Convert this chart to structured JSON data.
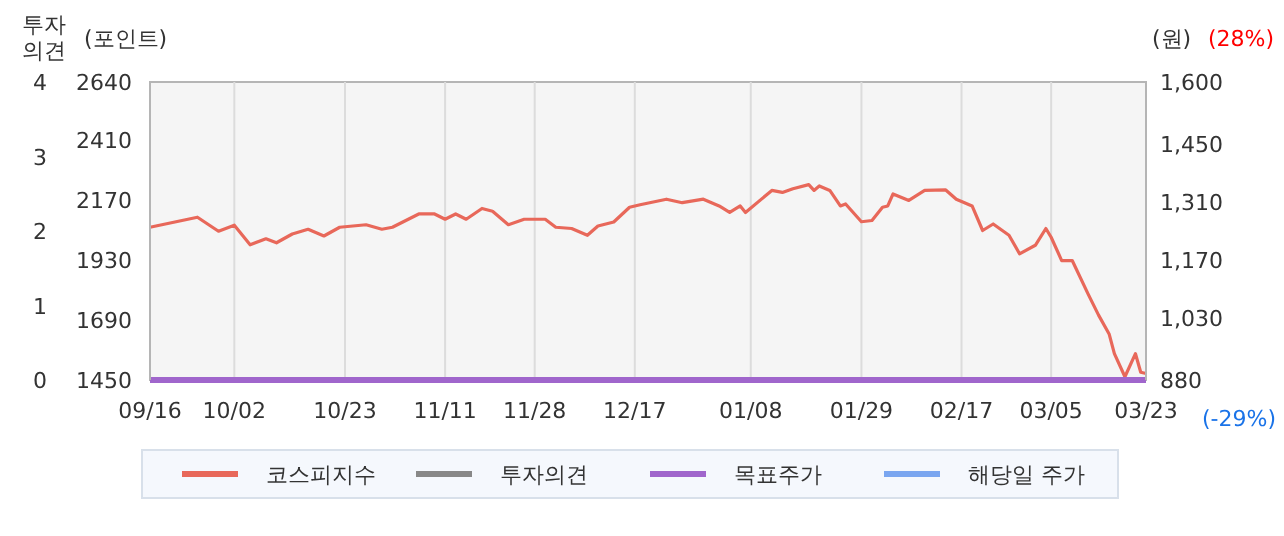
{
  "chart_data": {
    "type": "line",
    "ylabel": "(포인트)",
    "y2label": "(원)",
    "y3label": "투자의견",
    "annotations": [
      "(28%)",
      "(-29%)"
    ],
    "categories": [
      "09/16",
      null,
      null,
      null,
      null,
      null,
      null,
      null,
      null,
      null,
      null,
      null,
      null,
      null,
      null,
      null,
      "10/02",
      null,
      null,
      null,
      null,
      null,
      null,
      null,
      null,
      null,
      null,
      null,
      null,
      null,
      null,
      null,
      null,
      null,
      null,
      null,
      null,
      "10/23",
      null,
      null,
      null,
      null,
      null,
      null,
      null,
      null,
      null,
      null,
      null,
      null,
      null,
      null,
      null,
      null,
      null,
      null,
      "11/11",
      null,
      null,
      null,
      null,
      null,
      null,
      null,
      null,
      null,
      null,
      null,
      null,
      null,
      null,
      null,
      null,
      "11/28",
      null,
      null,
      null,
      null,
      null,
      null,
      null,
      null,
      null,
      null,
      null,
      null,
      null,
      null,
      null,
      null,
      null,
      null,
      "12/17",
      null,
      null,
      null,
      null,
      null,
      null,
      null,
      null,
      null,
      null,
      null,
      null,
      null,
      null,
      null,
      null,
      null,
      null,
      null,
      null,
      null,
      "01/08",
      null,
      null,
      null,
      null,
      null,
      null,
      null,
      null,
      null,
      null,
      null,
      null,
      null,
      null,
      null,
      null,
      null,
      null,
      null,
      null,
      "01/29",
      null,
      null,
      null,
      null,
      null,
      null,
      null,
      null,
      null,
      null,
      null,
      null,
      null,
      null,
      null,
      null,
      null,
      null,
      "02/17",
      null,
      null,
      null,
      null,
      null,
      null,
      null,
      null,
      null,
      null,
      null,
      null,
      null,
      null,
      null,
      null,
      "03/05",
      null,
      null,
      null,
      null,
      null,
      null,
      null,
      null,
      null,
      null,
      null,
      null,
      null,
      null,
      null,
      null,
      null,
      "03/23"
    ],
    "ylim": [
      1450,
      2640
    ],
    "yticks": [
      1450,
      1690,
      1930,
      2170,
      2410,
      2640
    ],
    "y2lim": [
      880,
      1600
    ],
    "y2ticks": [
      880,
      {
        "value": 1030,
        "label": "1,030"
      },
      {
        "value": 1170,
        "label": "1,170"
      },
      {
        "value": 1310,
        "label": "1,310"
      },
      {
        "value": 1450,
        "label": "1,450"
      },
      {
        "value": 1600,
        "label": "1,600"
      }
    ],
    "y3lim": [
      0,
      4
    ],
    "y3ticks": [
      0,
      1,
      2,
      3,
      4
    ],
    "grid": "x",
    "legend": "bottom",
    "marker": "none",
    "line_style": "solid",
    "series": [
      {
        "name": "코스피지수",
        "color": "#e8685a",
        "values": [
          2060,
          null,
          null,
          null,
          null,
          null,
          null,
          null,
          null,
          2100,
          null,
          null,
          null,
          2044,
          null,
          null,
          2068,
          null,
          null,
          1990,
          null,
          null,
          2014,
          null,
          1998,
          null,
          null,
          2033,
          null,
          null,
          2052,
          null,
          null,
          2025,
          null,
          null,
          2060,
          null,
          null,
          null,
          null,
          2070,
          null,
          null,
          2052,
          null,
          2060,
          null,
          null,
          null,
          null,
          2113,
          null,
          null,
          2113,
          null,
          2092,
          null,
          2113,
          null,
          2092,
          null,
          null,
          2135,
          null,
          2124,
          null,
          null,
          2070,
          null,
          null,
          2092,
          null,
          null,
          null,
          2092,
          null,
          2060,
          null,
          null,
          2055,
          null,
          null,
          2028,
          null,
          2065,
          null,
          null,
          2081,
          null,
          null,
          2140,
          null,
          2150,
          null,
          null,
          null,
          null,
          2172,
          null,
          null,
          2158,
          null,
          null,
          null,
          2172,
          null,
          null,
          2145,
          null,
          2119,
          null,
          2145,
          2119,
          null,
          null,
          null,
          null,
          2207,
          null,
          2199,
          null,
          2214,
          null,
          null,
          2230,
          2207,
          2225,
          null,
          2207,
          null,
          2145,
          2153,
          null,
          null,
          2082,
          null,
          2087,
          null,
          2140,
          2145,
          2193,
          null,
          null,
          2167,
          null,
          null,
          2207,
          null,
          null,
          null,
          2209,
          null,
          2172,
          null,
          null,
          2145,
          null,
          2047,
          null,
          2073,
          null,
          null,
          2028,
          null,
          1954,
          null,
          null,
          1988,
          null,
          2055,
          2020,
          null,
          1927,
          null,
          1927,
          null,
          null,
          1794,
          null,
          1709,
          null,
          1634,
          1555,
          null,
          1463,
          null,
          1555,
          1481,
          1476
        ]
      },
      {
        "name": "투자의견",
        "color": "#888888",
        "axis": "y3",
        "values": [
          null,
          null,
          null,
          null,
          null,
          null,
          null,
          null,
          null,
          null,
          null,
          null,
          null,
          null,
          null,
          null,
          null,
          null,
          null,
          null,
          null,
          null,
          null,
          null,
          null,
          null,
          null,
          null,
          null,
          null,
          null,
          null,
          null,
          null,
          null,
          null,
          null,
          null,
          null,
          null,
          null,
          null,
          null,
          null,
          null,
          null,
          null,
          null,
          null,
          null,
          null,
          null,
          null,
          null,
          null,
          null,
          null,
          null,
          null,
          null,
          null,
          null,
          null,
          null,
          null,
          null,
          null,
          null,
          null,
          null,
          null,
          null,
          null,
          null,
          null,
          null,
          null,
          null,
          null,
          null,
          null,
          null,
          null,
          null,
          null,
          null,
          null,
          null,
          null,
          null,
          null,
          null,
          null,
          null,
          null,
          null,
          null,
          null,
          null,
          null,
          null,
          null,
          null,
          null,
          null,
          null,
          null,
          null,
          null,
          null,
          null,
          null,
          null,
          null,
          null,
          null,
          null,
          null,
          null,
          null,
          null,
          null,
          null,
          null,
          null,
          null,
          null,
          null,
          null,
          null,
          null,
          null,
          null,
          null,
          null,
          null,
          null,
          null,
          null,
          null,
          null,
          null,
          null,
          null,
          null,
          null,
          null,
          null,
          null,
          null,
          null,
          null,
          null,
          null,
          null,
          null,
          null,
          null,
          null,
          null,
          null,
          null,
          null,
          null,
          null,
          null,
          null,
          null,
          null,
          null,
          null,
          null,
          null,
          null,
          null,
          null,
          null,
          null,
          null,
          null,
          null,
          null,
          null,
          null,
          null,
          null,
          null,
          null,
          null,
          null
        ]
      },
      {
        "name": "목표주가",
        "color": "#a066cc",
        "axis": "y2",
        "values": [
          880,
          null,
          null,
          null,
          null,
          null,
          null,
          null,
          null,
          null,
          null,
          null,
          null,
          null,
          null,
          null,
          null,
          null,
          null,
          null,
          null,
          null,
          null,
          null,
          null,
          null,
          null,
          null,
          null,
          null,
          null,
          null,
          null,
          null,
          null,
          null,
          null,
          null,
          null,
          null,
          null,
          null,
          null,
          null,
          null,
          null,
          null,
          null,
          null,
          null,
          null,
          null,
          null,
          null,
          null,
          null,
          null,
          null,
          null,
          null,
          null,
          null,
          null,
          null,
          null,
          null,
          null,
          null,
          null,
          null,
          null,
          null,
          null,
          null,
          null,
          null,
          null,
          null,
          null,
          null,
          null,
          null,
          null,
          null,
          null,
          null,
          null,
          null,
          null,
          null,
          null,
          null,
          null,
          null,
          null,
          null,
          null,
          null,
          null,
          null,
          null,
          null,
          null,
          null,
          null,
          null,
          null,
          null,
          null,
          null,
          null,
          null,
          null,
          null,
          null,
          null,
          null,
          null,
          null,
          null,
          null,
          null,
          null,
          null,
          null,
          null,
          null,
          null,
          null,
          null,
          null,
          null,
          null,
          null,
          null,
          null,
          null,
          null,
          null,
          null,
          null,
          null,
          null,
          null,
          null,
          null,
          null,
          null,
          null,
          null,
          null,
          null,
          null,
          null,
          null,
          null,
          null,
          null,
          null,
          null,
          null,
          null,
          null,
          null,
          null,
          null,
          null,
          null,
          null,
          null,
          null,
          null,
          null,
          null,
          null,
          null,
          null,
          null,
          null,
          null,
          null,
          null,
          null,
          null,
          null,
          null,
          null,
          null,
          null,
          880
        ]
      },
      {
        "name": "해당일 주가",
        "color": "#7aa6f0",
        "axis": "y2",
        "values": [
          null,
          null,
          null,
          null,
          null,
          null,
          null,
          null,
          null,
          null,
          null,
          null,
          null,
          null,
          null,
          null,
          null,
          null,
          null,
          null,
          null,
          null,
          null,
          null,
          null,
          null,
          null,
          null,
          null,
          null,
          null,
          null,
          null,
          null,
          null,
          null,
          null,
          null,
          null,
          null,
          null,
          null,
          null,
          null,
          null,
          null,
          null,
          null,
          null,
          null,
          null,
          null,
          null,
          null,
          null,
          null,
          null,
          null,
          null,
          null,
          null,
          null,
          null,
          null,
          null,
          null,
          null,
          null,
          null,
          null,
          null,
          null,
          null,
          null,
          null,
          null,
          null,
          null,
          null,
          null,
          null,
          null,
          null,
          null,
          null,
          null,
          null,
          null,
          null,
          null,
          null,
          null,
          null,
          null,
          null,
          null,
          null,
          null,
          null,
          null,
          null,
          null,
          null,
          null,
          null,
          null,
          null,
          null,
          null,
          null,
          null,
          null,
          null,
          null,
          null,
          null,
          null,
          null,
          null,
          null,
          null,
          null,
          null,
          null,
          null,
          null,
          null,
          null,
          null,
          null,
          null,
          null,
          null,
          null,
          null,
          null,
          null,
          null,
          null,
          null,
          null,
          null,
          null,
          null,
          null,
          null,
          null,
          null,
          null,
          null,
          null,
          null,
          null,
          null,
          null,
          null,
          null,
          null,
          null,
          null,
          null,
          null,
          null,
          null,
          null,
          null,
          null,
          null,
          null,
          null,
          null,
          null,
          null,
          null,
          null,
          null,
          null,
          null,
          null,
          null,
          null,
          null,
          null,
          null,
          null,
          null,
          null,
          null,
          null,
          null
        ]
      }
    ]
  }
}
